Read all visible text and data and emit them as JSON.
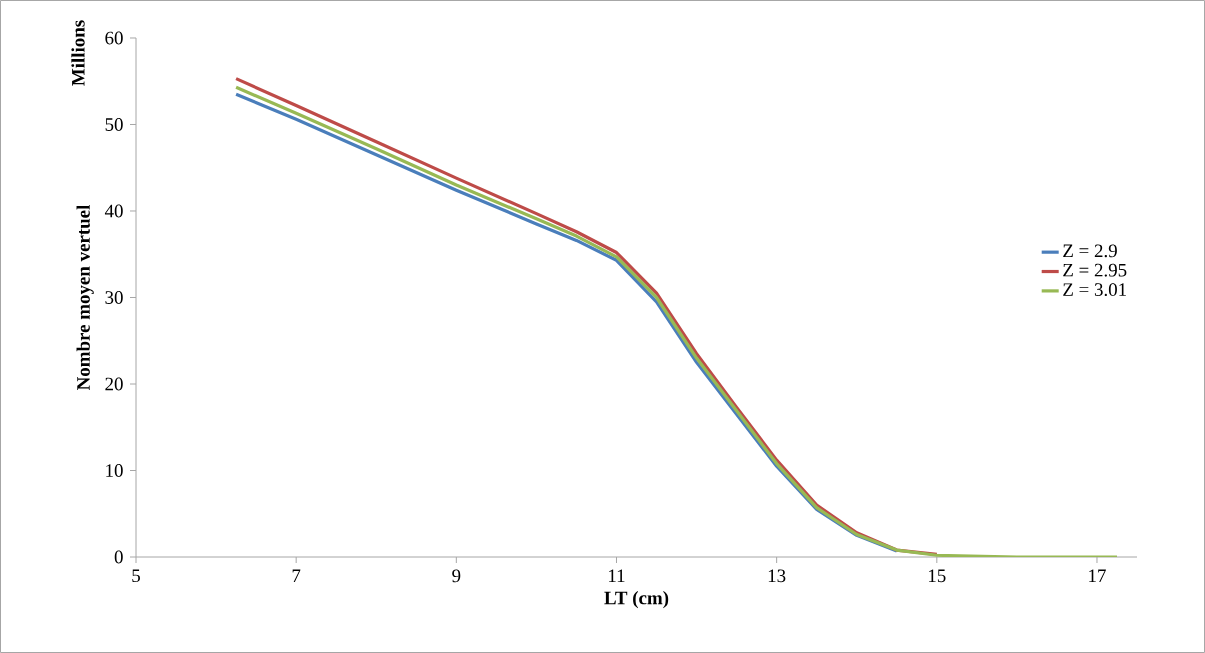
{
  "chart_data": {
    "type": "line",
    "xlabel": "LT (cm)",
    "ylabel": "Nombre moyen vertuel",
    "annotations": [
      "Millions"
    ],
    "x": [
      6.25,
      7,
      8,
      9,
      10,
      10.5,
      11,
      11.5,
      12,
      12.5,
      13,
      13.5,
      14,
      14.5,
      15,
      16,
      17,
      17.25
    ],
    "series": [
      {
        "name": "Z = 2.9",
        "color": "#4a7ebb",
        "values": [
          53.5,
          50.6,
          46.5,
          42.4,
          38.5,
          36.6,
          34.3,
          29.5,
          22.5,
          16.5,
          10.5,
          5.5,
          2.5,
          0.7,
          null,
          null,
          null,
          null
        ]
      },
      {
        "name": "Z = 2.95",
        "color": "#be4b48",
        "values": [
          55.3,
          52.2,
          48.0,
          43.8,
          39.7,
          37.6,
          35.2,
          30.5,
          23.5,
          17.3,
          11.2,
          6,
          2.8,
          0.8,
          0.3,
          null,
          null,
          null
        ]
      },
      {
        "name": "Z = 3.01",
        "color": "#98b954",
        "values": [
          54.3,
          51.3,
          47.2,
          43.0,
          39.1,
          37.1,
          34.7,
          30,
          23,
          16.9,
          10.8,
          5.7,
          2.6,
          0.8,
          0.2,
          0,
          0,
          0
        ]
      }
    ],
    "xlim": [
      5,
      17.5
    ],
    "xticks": [
      5,
      7,
      9,
      11,
      13,
      15,
      17
    ],
    "ylim": [
      0,
      60
    ],
    "yticks": [
      0,
      10,
      20,
      30,
      40,
      50,
      60
    ],
    "grid": false,
    "legend": "right",
    "marker": "none",
    "line_style": "solid"
  }
}
